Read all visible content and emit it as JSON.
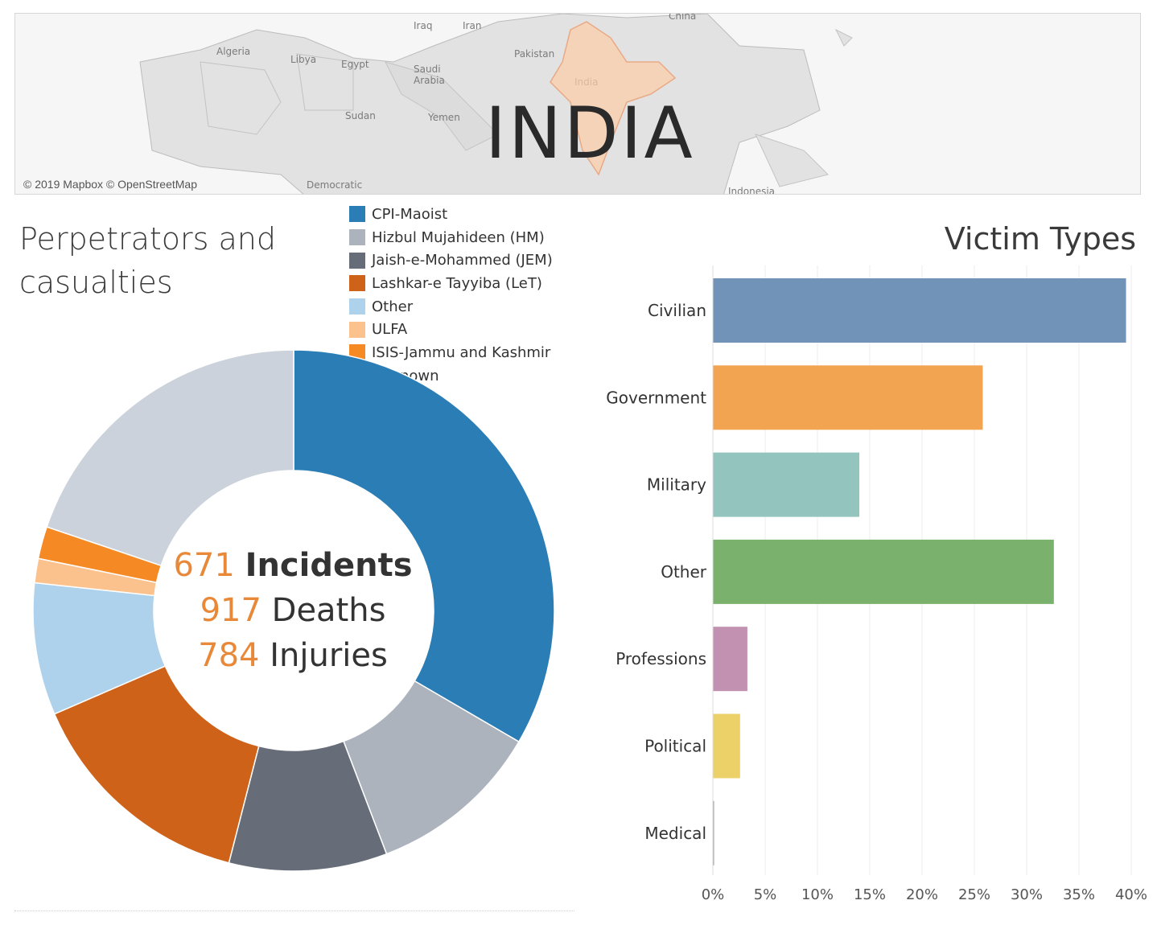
{
  "map": {
    "country": "INDIA",
    "credit": "© 2019 Mapbox © OpenStreetMap",
    "labels": [
      "China",
      "Iraq",
      "Iran",
      "Algeria",
      "Libya",
      "Egypt",
      "Pakistan",
      "Saudi",
      "Arabia",
      "India",
      "Sudan",
      "Yemen",
      "Democratic",
      "Indonesia"
    ]
  },
  "left_title": "Perpetrators and casualties",
  "right_title": "Victim Types",
  "legend": [
    {
      "label": "CPI-Maoist",
      "color": "#2a7db5"
    },
    {
      "label": "Hizbul Mujahideen (HM)",
      "color": "#adb3bd"
    },
    {
      "label": "Jaish-e-Mohammed (JEM)",
      "color": "#666d78"
    },
    {
      "label": "Lashkar-e Tayyiba (LeT)",
      "color": "#cf6219"
    },
    {
      "label": "Other",
      "color": "#aed1ec"
    },
    {
      "label": "ULFA",
      "color": "#fbc28e"
    },
    {
      "label": "ISIS-Jammu and Kashmir",
      "color": "#f58a25"
    },
    {
      "label": "Unknown",
      "color": "#ccd2dc"
    }
  ],
  "summary": {
    "incidents_num": "671",
    "incidents_label": "Incidents",
    "deaths_num": "917",
    "deaths_label": "Deaths",
    "injuries_num": "784",
    "injuries_label": "Injuries"
  },
  "chart_data": [
    {
      "type": "pie",
      "labels": [
        "CPI-Maoist",
        "Hizbul Mujahideen (HM)",
        "Jaish-e-Mohammed (JEM)",
        "Lashkar-e Tayyiba (LeT)",
        "Other",
        "ULFA",
        "ISIS-Jammu and Kashmir",
        "Unknown"
      ],
      "values": [
        33.4,
        10.8,
        9.8,
        14.5,
        8.2,
        1.5,
        2.0,
        19.8
      ],
      "colors": [
        "#2a7db5",
        "#adb3bd",
        "#666d78",
        "#cf6219",
        "#aed1ec",
        "#fbc28e",
        "#f58a25",
        "#ccd2dc"
      ],
      "donut": true
    },
    {
      "type": "bar",
      "orientation": "horizontal",
      "title": "Victim Types",
      "categories": [
        "Civilian",
        "Government",
        "Military",
        "Other",
        "Professions",
        "Political",
        "Medical"
      ],
      "values": [
        39.5,
        25.8,
        14.0,
        32.6,
        3.3,
        2.6,
        0.1
      ],
      "colors": [
        "#7293b8",
        "#f3a451",
        "#93c5be",
        "#7ab26d",
        "#c291b1",
        "#ecd068",
        "#9aa0a6"
      ],
      "xlim": [
        0,
        40
      ],
      "xticks": [
        "0%",
        "5%",
        "10%",
        "15%",
        "20%",
        "25%",
        "30%",
        "35%",
        "40%"
      ],
      "grid": true
    }
  ]
}
